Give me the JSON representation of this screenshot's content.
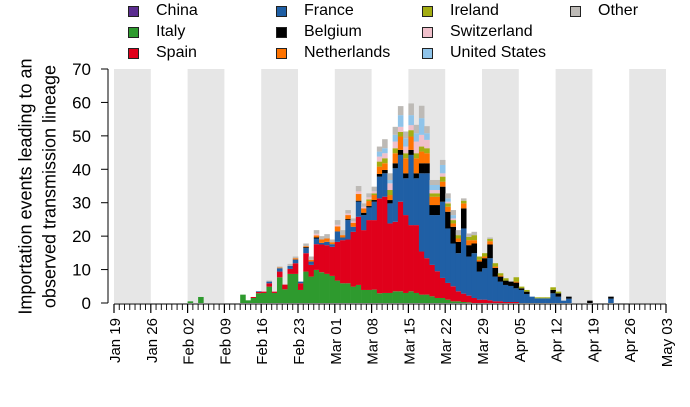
{
  "chart_data": {
    "type": "bar",
    "stacked": true,
    "title": "",
    "ylabel": [
      "Importation events leading to an",
      "observed transmission lineage"
    ],
    "xlabel": "",
    "ylim": [
      0,
      70
    ],
    "yticks": [
      "0",
      "10",
      "20",
      "30",
      "40",
      "50",
      "60",
      "70"
    ],
    "xticks": [
      "Jan 19",
      "Jan 26",
      "Feb 02",
      "Feb 09",
      "Feb 16",
      "Feb 23",
      "Mar 01",
      "Mar 08",
      "Mar 15",
      "Mar 22",
      "Mar 29",
      "Apr 05",
      "Apr 12",
      "Apr 19",
      "Apr 26",
      "May 03"
    ],
    "x_range_days": [
      0,
      105
    ],
    "x_first_bar_day": 14,
    "shaded_weeks": [
      0,
      2,
      4,
      6,
      8,
      10,
      12,
      14
    ],
    "legend_placement": "top",
    "series": [
      {
        "name": "China",
        "color": "#5b2d90",
        "values": [
          0,
          0,
          0,
          0,
          0,
          0,
          0,
          0,
          0,
          0,
          0,
          0,
          0,
          0,
          0,
          0,
          0,
          0,
          0,
          0,
          0,
          0,
          0,
          0,
          0,
          0,
          0,
          0,
          0,
          0,
          0,
          0,
          0,
          0,
          0,
          0,
          0,
          0,
          0,
          0,
          0,
          0,
          0,
          0,
          0,
          0,
          0,
          0,
          0,
          0,
          0,
          0,
          0,
          0,
          0,
          0,
          0,
          0,
          0,
          0,
          0,
          0,
          0,
          0,
          0,
          0,
          0,
          0,
          0,
          0,
          0,
          0,
          0,
          0,
          0,
          0,
          0,
          0,
          0,
          0,
          0
        ]
      },
      {
        "name": "Italy",
        "color": "#2e9a2e",
        "values": [
          0.5,
          0,
          1.8,
          0,
          0,
          0,
          0,
          0,
          0,
          0,
          2.5,
          0.8,
          1.5,
          2.9,
          3.0,
          4.9,
          3.0,
          7.7,
          4.1,
          8.7,
          8.7,
          3.9,
          9.4,
          7.9,
          9.9,
          9.2,
          8.7,
          8.1,
          6.7,
          5.9,
          5.9,
          4.9,
          5.4,
          3.9,
          3.9,
          4.0,
          2.9,
          3.0,
          3.0,
          3.5,
          3.5,
          3.0,
          3.5,
          3.0,
          2.5,
          2.5,
          2.0,
          1.5,
          1.5,
          1.0,
          0.5,
          0.5,
          0.3,
          0.2,
          0,
          0,
          0,
          0,
          0,
          0,
          0,
          0,
          0,
          0,
          0,
          0,
          0,
          0,
          0,
          0,
          0,
          0,
          0,
          0,
          0,
          0,
          0,
          0,
          0,
          0,
          0
        ]
      },
      {
        "name": "Spain",
        "color": "#e0001b",
        "values": [
          0,
          0,
          0,
          0,
          0,
          0,
          0,
          0,
          0,
          0,
          0,
          0,
          0.3,
          0.4,
          0.4,
          1.0,
          0.4,
          1.7,
          1.4,
          1.5,
          3.2,
          2.0,
          5.5,
          3.5,
          7.7,
          8.3,
          8.6,
          8.7,
          11.6,
          12.9,
          13.1,
          16.4,
          20.4,
          17.9,
          20.9,
          20.8,
          28.4,
          28.8,
          20.8,
          20.8,
          26.8,
          23.3,
          19.8,
          20.3,
          12.9,
          10.9,
          9.4,
          8.0,
          6.0,
          5.0,
          4.5,
          3.0,
          2.5,
          2.0,
          1.5,
          1.0,
          1.0,
          0.8,
          0.5,
          0.5,
          0.3,
          0.3,
          0.3,
          0,
          0,
          0,
          0,
          0,
          0,
          0,
          0,
          0,
          0,
          0,
          0,
          0,
          0,
          0,
          0,
          0,
          0
        ]
      },
      {
        "name": "France",
        "color": "#1f5fa5",
        "values": [
          0,
          0,
          0,
          0,
          0,
          0,
          0,
          0,
          0,
          0,
          0,
          0,
          0,
          0.2,
          0,
          0.5,
          0,
          1.0,
          0,
          0.9,
          1.1,
          0.5,
          1.5,
          1.0,
          1.7,
          0.5,
          1.0,
          0.8,
          3.1,
          0.8,
          5.8,
          1.5,
          4.5,
          4.5,
          3.8,
          5.5,
          6.5,
          7.0,
          6.0,
          16.0,
          14.0,
          11.0,
          21.0,
          14.0,
          23.4,
          25.4,
          14.9,
          16.8,
          22.8,
          16.3,
          12.8,
          11.4,
          19.5,
          11.7,
          13.4,
          8.4,
          9.4,
          12.6,
          7.4,
          5.9,
          5.1,
          4.8,
          4.1,
          3.9,
          2.7,
          1.9,
          1.4,
          1.4,
          1.4,
          2.9,
          1.9,
          0.7,
          1.3,
          0,
          0,
          0,
          0,
          0,
          0,
          0,
          1.3
        ]
      },
      {
        "name": "Belgium",
        "color": "#000000",
        "values": [
          0,
          0,
          0,
          0,
          0,
          0,
          0,
          0,
          0,
          0,
          0,
          0,
          0,
          0,
          0,
          0,
          0,
          0,
          0,
          0,
          0,
          0,
          0.3,
          0,
          0.3,
          0,
          0,
          0,
          0,
          0,
          0.3,
          0,
          0.3,
          0.7,
          0.4,
          0.5,
          0.8,
          1.0,
          1.0,
          1.5,
          1.5,
          1.5,
          1.5,
          1.5,
          3.0,
          3.0,
          3.0,
          3.0,
          4.5,
          5.0,
          5.0,
          3.4,
          6.0,
          3.4,
          2.9,
          3.0,
          3.0,
          4.1,
          2.6,
          1.5,
          1.3,
          1.3,
          1.7,
          0.5,
          0.7,
          0,
          0,
          0,
          0,
          1.0,
          1.0,
          0,
          0.6,
          0,
          0,
          0,
          0.7,
          0,
          0,
          0,
          0.6
        ]
      },
      {
        "name": "Netherlands",
        "color": "#ff7300",
        "values": [
          0,
          0,
          0,
          0,
          0,
          0,
          0,
          0,
          0,
          0,
          0,
          0,
          0,
          0,
          0,
          0,
          0,
          0.2,
          0,
          0,
          0.4,
          0,
          0.3,
          0.5,
          0.6,
          1.0,
          1.0,
          0.6,
          1.5,
          0.7,
          1.2,
          1.2,
          2.0,
          1.3,
          1.5,
          1.5,
          2.2,
          2.0,
          1.5,
          3.0,
          4.0,
          4.5,
          4.0,
          4.5,
          3.5,
          3.0,
          2.5,
          2.5,
          1.5,
          1.5,
          1.0,
          1.0,
          1.5,
          1.5,
          1.0,
          0.5,
          0.5,
          1.0,
          0.4,
          0.3,
          0,
          0,
          0.3,
          0,
          0,
          0,
          0,
          0,
          0,
          0,
          0,
          0,
          0,
          0,
          0,
          0,
          0,
          0,
          0,
          0,
          0
        ]
      },
      {
        "name": "Ireland",
        "color": "#a3ad12",
        "values": [
          0,
          0,
          0,
          0,
          0,
          0,
          0,
          0,
          0,
          0,
          0,
          0,
          0,
          0,
          0,
          0,
          0,
          0,
          0,
          0,
          0,
          0,
          0,
          0,
          0,
          0,
          0,
          0,
          0,
          0,
          0,
          0,
          0,
          0,
          0.5,
          0.5,
          1.5,
          1.5,
          1.5,
          1.5,
          1.4,
          1.5,
          1.9,
          1.5,
          1.5,
          1.5,
          1.0,
          1.0,
          1.5,
          1.0,
          1.0,
          1.0,
          0.8,
          1.0,
          1.5,
          1.0,
          1.0,
          0.7,
          1.0,
          0.7,
          0.7,
          0,
          1.3,
          0.5,
          0.5,
          0,
          0.3,
          0.3,
          0.3,
          0.8,
          0.5,
          0,
          0,
          0,
          0,
          0,
          0,
          0,
          0,
          0,
          0
        ]
      },
      {
        "name": "Switzerland",
        "color": "#f0c0cb",
        "values": [
          0,
          0,
          0,
          0,
          0,
          0,
          0,
          0,
          0,
          0,
          0,
          0,
          0,
          0,
          0,
          0,
          0,
          0,
          0,
          0,
          0,
          0,
          0,
          0,
          0.5,
          0,
          0,
          0,
          0.5,
          0,
          0.5,
          0.4,
          0.8,
          0.5,
          0.6,
          0.6,
          1.5,
          1.5,
          2.0,
          2.0,
          1.5,
          2.0,
          1.5,
          3.5,
          3.5,
          2.5,
          1.0,
          1.0,
          1.0,
          0.5,
          0.5,
          0,
          0,
          0,
          0,
          0,
          0,
          0,
          0,
          0,
          0,
          0,
          0,
          0,
          0,
          0,
          0,
          0,
          0,
          0,
          0,
          0,
          0,
          0,
          0,
          0,
          0,
          0,
          0,
          0,
          0
        ]
      },
      {
        "name": "United States",
        "color": "#8fc4ea",
        "values": [
          0,
          0,
          0,
          0,
          0,
          0,
          0,
          0,
          0,
          0,
          0,
          0,
          0,
          0,
          0,
          0,
          0,
          0,
          0,
          0,
          0,
          0,
          0,
          0,
          0,
          0,
          0,
          0,
          0,
          0,
          0,
          0,
          0,
          0,
          0,
          0,
          1.5,
          1.5,
          1.0,
          2.0,
          3.5,
          2.5,
          3.0,
          2.5,
          5.0,
          2.0,
          1.5,
          1.5,
          2.5,
          1.0,
          1.0,
          0,
          0,
          0,
          0,
          0,
          0,
          0,
          0,
          0,
          0,
          0,
          0,
          0,
          0,
          0,
          0,
          0,
          0,
          0,
          0,
          0,
          0,
          0,
          0,
          0,
          0,
          0,
          0,
          0,
          0
        ]
      },
      {
        "name": "Other",
        "color": "#bdbab6",
        "values": [
          0,
          0,
          0,
          0,
          0,
          0,
          0,
          0,
          0,
          0,
          0,
          0,
          0,
          0,
          0,
          0.3,
          0,
          0.3,
          0,
          0.6,
          0.5,
          0,
          0.8,
          1.0,
          1.1,
          1.0,
          1.3,
          0.8,
          1.4,
          1.5,
          1.0,
          0.9,
          1.6,
          1.0,
          1.2,
          1.4,
          1.5,
          2.7,
          2.0,
          2.4,
          2.7,
          2.0,
          3.5,
          2.5,
          3.7,
          2.1,
          1.5,
          1.5,
          1.5,
          1.5,
          1.5,
          1.5,
          0.7,
          1.0,
          1.0,
          0,
          0,
          0.4,
          0,
          0,
          0,
          0,
          0,
          0,
          0,
          0,
          0,
          0,
          0,
          0,
          0,
          0,
          0,
          0,
          0,
          0,
          0,
          0,
          0,
          0,
          0
        ]
      }
    ]
  }
}
